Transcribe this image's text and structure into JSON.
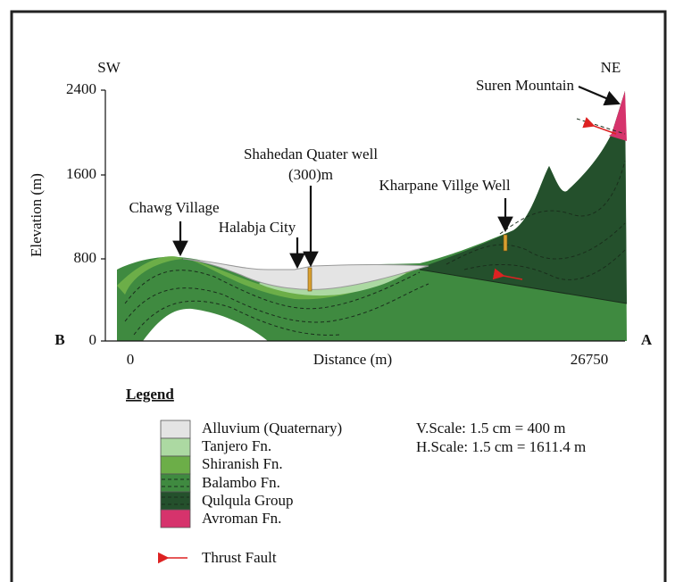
{
  "orientation": {
    "left": "SW",
    "right": "NE",
    "left_point": "B",
    "right_point": "A"
  },
  "axes": {
    "y_title": "Elevation (m)",
    "y_ticks": [
      "2400",
      "1600",
      "800",
      "0"
    ],
    "x_title": "Distance (m)",
    "x_ticks": [
      "0",
      "26750"
    ]
  },
  "annotations": {
    "suren": "Suren Mountain",
    "shahedan": "Shahedan Quater well",
    "shahedan_depth": "(300)m",
    "kharpane": "Kharpane Villge Well",
    "chawg": "Chawg Village",
    "halabja": "Halabja City"
  },
  "legend": {
    "title": "Legend",
    "items": [
      "Alluvium (Quaternary)",
      "Tanjero Fn.",
      "Shiranish Fn.",
      "Balambo Fn.",
      "Qulqula Group",
      "Avroman Fn."
    ],
    "scales": [
      "V.Scale: 1.5 cm = 400 m",
      "H.Scale: 1.5 cm = 1611.4 m"
    ],
    "fault": "Thrust Fault"
  }
}
